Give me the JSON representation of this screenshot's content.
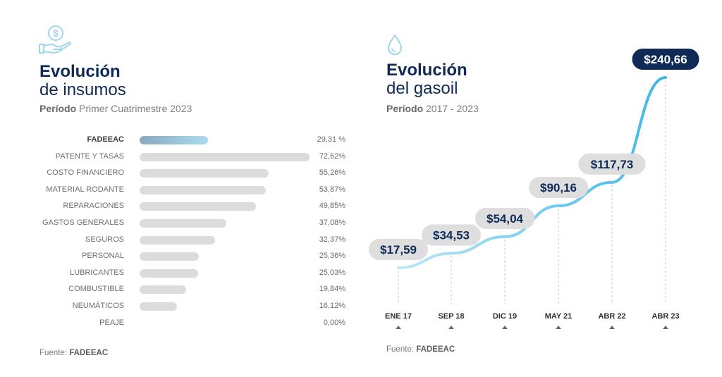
{
  "left": {
    "title_line1": "Evolución",
    "title_line2": "de insumos",
    "period_label": "Período",
    "period_value": "Primer Cuatrimestre 2023",
    "source_label": "Fuente:",
    "source_value": "FADEEAC",
    "icon": "hand-dollar-icon",
    "highlight_color": "#9ed6ee",
    "bar_color": "#dcdcdc"
  },
  "right": {
    "title_line1": "Evolución",
    "title_line2": "del gasoil",
    "period_label": "Período",
    "period_value": "2017 - 2023",
    "source_label": "Fuente:",
    "source_value": "FADEEAC",
    "icon": "drop-icon",
    "line_color": "#4cbbe6"
  },
  "chart_data": [
    {
      "type": "bar",
      "orientation": "horizontal",
      "categories": [
        "FADEEAC",
        "PATENTE Y TASAS",
        "COSTO FINANCIERO",
        "MATERIAL RODANTE",
        "REPARACIONES",
        "GASTOS GENERALES",
        "SEGUROS",
        "PERSONAL",
        "LUBRICANTES",
        "COMBUSTIBLE",
        "NEUMÁTICOS",
        "PEAJE"
      ],
      "values": [
        29.31,
        72.62,
        55.26,
        53.87,
        49.85,
        37.08,
        32.37,
        25.36,
        25.03,
        19.84,
        16.12,
        0.0
      ],
      "value_labels": [
        "29,31 %",
        "72,62%",
        "55,26%",
        "53,87%",
        "49,85%",
        "37,08%",
        "32,37%",
        "25,36%",
        "25,03%",
        "19,84%",
        "16,12%",
        "0,00%"
      ],
      "highlight": "FADEEAC",
      "xlim": [
        0,
        72.62
      ]
    },
    {
      "type": "line",
      "categories": [
        "ENE 17",
        "SEP 18",
        "DIC 19",
        "MAY 21",
        "ABR 22",
        "ABR 23"
      ],
      "values": [
        17.59,
        34.53,
        54.04,
        90.16,
        117.73,
        240.66
      ],
      "value_labels": [
        "$17,59",
        "$34,53",
        "$54,04",
        "$90,16",
        "$117,73",
        "$240,66"
      ],
      "highlight": "ABR 23"
    }
  ]
}
